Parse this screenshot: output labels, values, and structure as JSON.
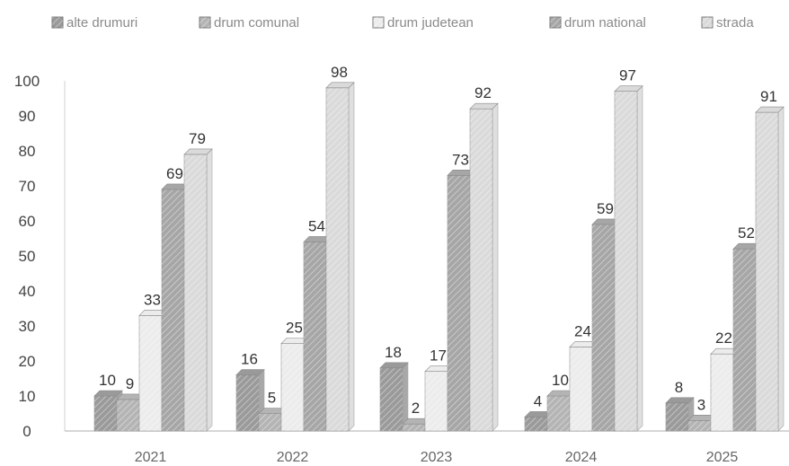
{
  "chart_data": {
    "type": "bar",
    "title": "",
    "xlabel": "",
    "ylabel": "",
    "categories": [
      "2021",
      "2022",
      "2023",
      "2024",
      "2025"
    ],
    "series": [
      {
        "name": "alte drumuri",
        "values": [
          10,
          16,
          18,
          4,
          8
        ],
        "color": "#9a9a9a"
      },
      {
        "name": "drum comunal",
        "values": [
          9,
          5,
          2,
          10,
          3
        ],
        "color": "#b4b4b4"
      },
      {
        "name": "drum judetean",
        "values": [
          33,
          25,
          17,
          24,
          22
        ],
        "color": "#ececec"
      },
      {
        "name": "drum national",
        "values": [
          69,
          54,
          73,
          59,
          52
        ],
        "color": "#a6a6a6"
      },
      {
        "name": "strada",
        "values": [
          79,
          98,
          92,
          97,
          91
        ],
        "color": "#dadada"
      }
    ],
    "yticks": [
      "0",
      "10",
      "20",
      "30",
      "40",
      "50",
      "60",
      "70",
      "80",
      "90",
      "100"
    ],
    "ylim": [
      0,
      100
    ],
    "legend_position": "top",
    "grid": false
  }
}
